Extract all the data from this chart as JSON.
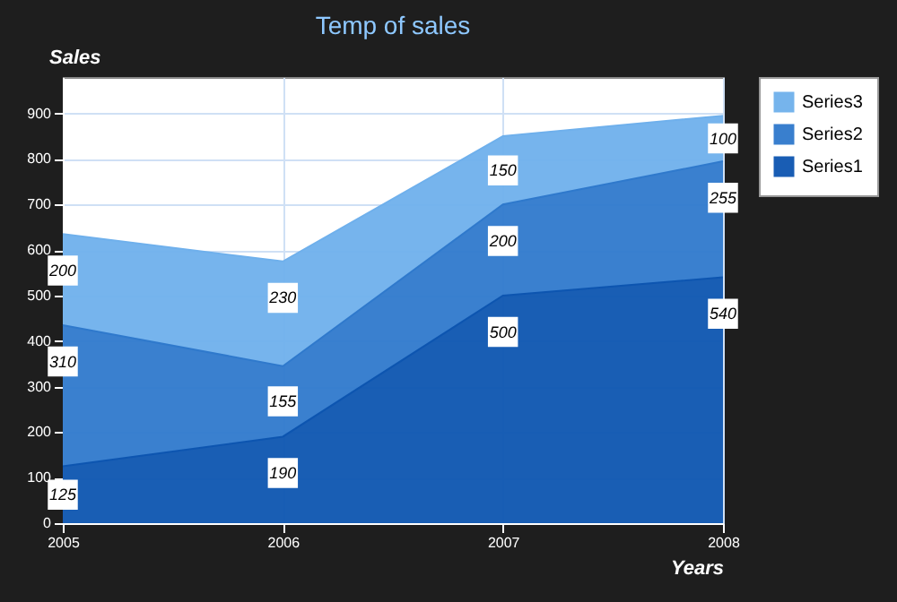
{
  "chart_data": {
    "type": "area",
    "title": "Temp of sales",
    "xlabel": "Years",
    "ylabel": "Sales",
    "categories": [
      "2005",
      "2006",
      "2007",
      "2008"
    ],
    "stacked": true,
    "series": [
      {
        "name": "Series1",
        "color": "#0d55b0",
        "values": [
          125,
          190,
          500,
          540
        ]
      },
      {
        "name": "Series2",
        "color": "#2f79cc",
        "values": [
          310,
          155,
          200,
          255
        ]
      },
      {
        "name": "Series3",
        "color": "#6fb0ec",
        "values": [
          200,
          230,
          150,
          100
        ]
      }
    ],
    "ylim": [
      0,
      980
    ],
    "yticks": [
      0,
      100,
      200,
      300,
      400,
      500,
      600,
      700,
      800,
      900
    ],
    "grid": true,
    "legend": "right",
    "data_labels": true
  }
}
